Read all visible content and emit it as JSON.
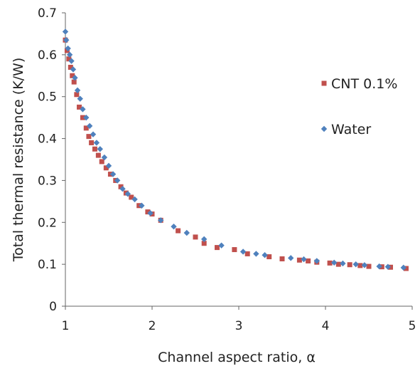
{
  "chart_data": {
    "type": "scatter",
    "xlabel": "Channel aspect ratio, α",
    "ylabel": "Total thermal resistance (K/W)",
    "xlim": [
      1,
      5
    ],
    "ylim": [
      0,
      0.7
    ],
    "xticks": [
      1,
      2,
      3,
      4,
      5
    ],
    "yticks": [
      0,
      0.1,
      0.2,
      0.3,
      0.4,
      0.5,
      0.6,
      0.7
    ],
    "grid": false,
    "legend_position": "right",
    "series": [
      {
        "name": "CNT 0.1%",
        "color": "#c0504d",
        "marker": "square",
        "x": [
          1.0,
          1.02,
          1.04,
          1.06,
          1.08,
          1.1,
          1.13,
          1.16,
          1.2,
          1.24,
          1.27,
          1.3,
          1.34,
          1.38,
          1.42,
          1.47,
          1.52,
          1.58,
          1.64,
          1.7,
          1.76,
          1.85,
          1.95,
          2.0,
          2.1,
          2.3,
          2.5,
          2.6,
          2.75,
          2.95,
          3.1,
          3.35,
          3.5,
          3.7,
          3.8,
          3.9,
          4.05,
          4.15,
          4.28,
          4.4,
          4.5,
          4.65,
          4.75,
          4.93
        ],
        "y": [
          0.635,
          0.61,
          0.59,
          0.57,
          0.55,
          0.535,
          0.505,
          0.475,
          0.45,
          0.425,
          0.405,
          0.39,
          0.375,
          0.36,
          0.345,
          0.33,
          0.315,
          0.3,
          0.285,
          0.27,
          0.26,
          0.24,
          0.225,
          0.22,
          0.205,
          0.18,
          0.165,
          0.15,
          0.14,
          0.135,
          0.125,
          0.118,
          0.113,
          0.11,
          0.108,
          0.105,
          0.103,
          0.1,
          0.099,
          0.097,
          0.095,
          0.094,
          0.093,
          0.09
        ]
      },
      {
        "name": "Water",
        "color": "#4f81bd",
        "marker": "diamond",
        "x": [
          1.0,
          1.01,
          1.03,
          1.05,
          1.07,
          1.09,
          1.11,
          1.14,
          1.17,
          1.2,
          1.24,
          1.28,
          1.32,
          1.36,
          1.4,
          1.45,
          1.5,
          1.55,
          1.6,
          1.66,
          1.72,
          1.8,
          1.88,
          1.98,
          2.1,
          2.25,
          2.4,
          2.6,
          2.8,
          3.05,
          3.2,
          3.3,
          3.6,
          3.75,
          3.9,
          4.1,
          4.2,
          4.35,
          4.45,
          4.62,
          4.72,
          4.9
        ],
        "y": [
          0.655,
          0.635,
          0.615,
          0.6,
          0.585,
          0.565,
          0.545,
          0.515,
          0.495,
          0.47,
          0.45,
          0.43,
          0.41,
          0.39,
          0.375,
          0.355,
          0.335,
          0.315,
          0.3,
          0.28,
          0.268,
          0.255,
          0.24,
          0.222,
          0.205,
          0.19,
          0.175,
          0.16,
          0.145,
          0.13,
          0.125,
          0.122,
          0.115,
          0.112,
          0.108,
          0.104,
          0.102,
          0.1,
          0.098,
          0.095,
          0.094,
          0.092
        ]
      }
    ]
  }
}
